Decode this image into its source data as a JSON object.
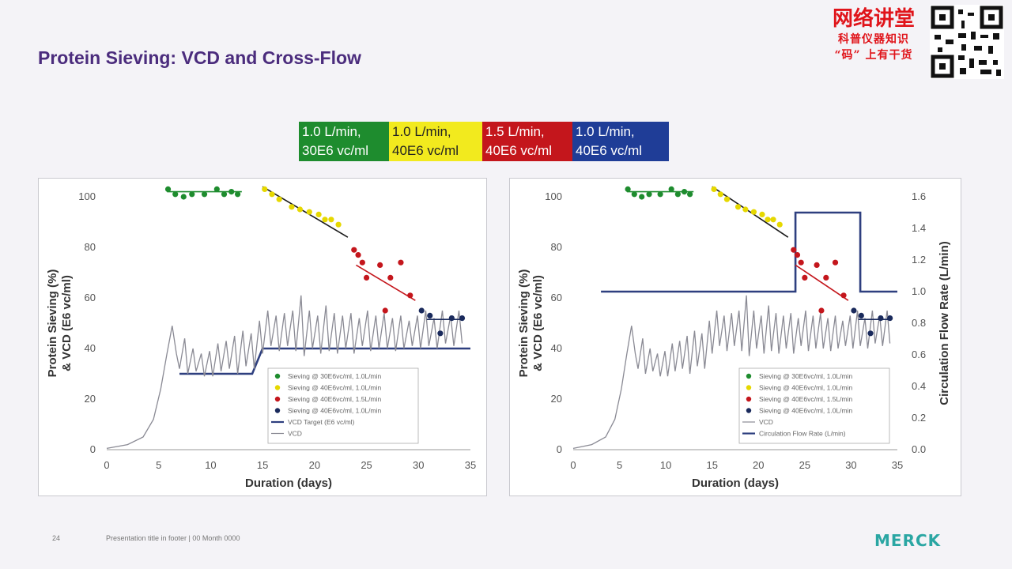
{
  "slide": {
    "title": "Protein Sieving: VCD and Cross-Flow",
    "footer_page": "24",
    "footer_text": "Presentation title in footer | 00 Month 0000",
    "logo_text": "MERCK"
  },
  "banner": {
    "title": "网络讲堂",
    "line1": "科普仪器知识",
    "line2": "“码” 上有干货"
  },
  "condition_boxes": [
    {
      "line1": "1.0 L/min,",
      "line2": "30E6 vc/ml",
      "color": "#1e8c2e"
    },
    {
      "line1": "1.0 L/min,",
      "line2": "40E6 vc/ml",
      "color": "#f2ea1e"
    },
    {
      "line1": "1.5 L/min,",
      "line2": "40E6 vc/ml",
      "color": "#c4161c"
    },
    {
      "line1": "1.0 L/min,",
      "line2": "40E6 vc/ml",
      "color": "#1f3d97"
    }
  ],
  "chart_data": [
    {
      "type": "scatter",
      "xlabel": "Duration (days)",
      "ylabel": "Protein Sieving (%) & VCD (E6 vc/ml)",
      "xlim": [
        0,
        35
      ],
      "ylim": [
        0,
        100
      ],
      "xticks": [
        0,
        5,
        10,
        15,
        20,
        25,
        30,
        35
      ],
      "yticks": [
        0,
        20,
        40,
        60,
        80,
        100
      ],
      "legend_position": "bottom-right",
      "series": [
        {
          "name": "Sieving @ 30E6vc/ml, 1.0L/min",
          "color": "#1e8c2e",
          "kind": "scatter",
          "x": [
            5.9,
            6.6,
            7.4,
            8.2,
            9.4,
            10.6,
            11.3,
            12.0,
            12.6
          ],
          "y": [
            103,
            101,
            100,
            101,
            101,
            103,
            101,
            102,
            101
          ],
          "trend": [
            [
              5.8,
              102
            ],
            [
              13.0,
              102
            ]
          ]
        },
        {
          "name": "Sieving @ 40E6vc/ml, 1.0L/min",
          "color": "#e6d800",
          "kind": "scatter",
          "x": [
            15.2,
            15.9,
            16.6,
            17.8,
            18.6,
            19.5,
            20.4,
            21.0,
            21.6,
            22.3
          ],
          "y": [
            103,
            101,
            99,
            96,
            95,
            94,
            93,
            91,
            91,
            89
          ],
          "trend": [
            [
              15.0,
              104
            ],
            [
              23.2,
              84
            ]
          ]
        },
        {
          "name": "Sieving @ 40E6vc/ml, 1.5L/min",
          "color": "#c4161c",
          "kind": "scatter",
          "x": [
            23.8,
            24.2,
            24.6,
            25.0,
            26.3,
            26.8,
            27.3,
            28.3,
            29.2
          ],
          "y": [
            79,
            77,
            74,
            68,
            73,
            55,
            68,
            74,
            61
          ],
          "trend": [
            [
              24.0,
              73
            ],
            [
              29.7,
              59
            ]
          ]
        },
        {
          "name": "Sieving @ 40E6vc/ml, 1.0L/min",
          "color": "#1a2a5c",
          "kind": "scatter",
          "x": [
            30.3,
            31.1,
            32.1,
            33.2,
            34.2
          ],
          "y": [
            55,
            53,
            46,
            52,
            52
          ],
          "trend": [
            [
              30.8,
              51.5
            ],
            [
              34.2,
              51.5
            ]
          ]
        },
        {
          "name": "VCD Target (E6 vc/ml)",
          "color": "#2e3f7f",
          "kind": "step",
          "x": [
            7,
            14,
            15,
            35
          ],
          "y": [
            30,
            30,
            40,
            40
          ]
        },
        {
          "name": "VCD",
          "color": "#8a8a94",
          "kind": "line",
          "x": [
            0,
            2,
            3.5,
            4.5,
            5.2,
            5.8,
            6.3,
            6.7,
            7.0,
            7.5,
            7.8,
            8.3,
            8.6,
            9.1,
            9.4,
            9.9,
            10.2,
            10.7,
            11.0,
            11.5,
            11.8,
            12.3,
            12.6,
            13.1,
            13.4,
            13.9,
            14.2,
            14.7,
            15.0,
            15.5,
            15.8,
            16.3,
            16.6,
            17.1,
            17.4,
            17.9,
            18.2,
            18.7,
            19.0,
            19.5,
            19.8,
            20.3,
            20.6,
            21.1,
            21.4,
            21.9,
            22.2,
            22.7,
            23.0,
            23.5,
            23.8,
            24.3,
            24.6,
            25.1,
            25.4,
            25.9,
            26.2,
            26.7,
            27.0,
            27.5,
            27.8,
            28.3,
            28.6,
            29.1,
            29.4,
            29.9,
            30.2,
            30.7,
            31.0,
            31.5,
            31.8,
            32.3,
            32.6,
            33.1,
            33.4,
            33.9,
            34.2
          ],
          "y": [
            0.5,
            2,
            5,
            12,
            24,
            38,
            49,
            38,
            32,
            44,
            30,
            40,
            31,
            38,
            29,
            39,
            29,
            42,
            31,
            43,
            32,
            45,
            30,
            47,
            33,
            46,
            32,
            51,
            38,
            55,
            41,
            53,
            39,
            54,
            41,
            55,
            39,
            61,
            37,
            55,
            40,
            53,
            38,
            57,
            39,
            54,
            38,
            53,
            40,
            54,
            38,
            52,
            41,
            55,
            39,
            53,
            40,
            54,
            40,
            52,
            39,
            53,
            40,
            51,
            41,
            53,
            40,
            55,
            41,
            52,
            40,
            55,
            42,
            53,
            41,
            55,
            42
          ]
        }
      ]
    },
    {
      "type": "scatter",
      "xlabel": "Duration (days)",
      "ylabel": "Protein Sieving (%) & VCD (E6 vc/ml)",
      "y2label": "Circulation Flow Rate (L/min)",
      "xlim": [
        0,
        35
      ],
      "ylim": [
        0,
        100
      ],
      "y2lim": [
        0,
        1.6
      ],
      "xticks": [
        0,
        5,
        10,
        15,
        20,
        25,
        30,
        35
      ],
      "yticks": [
        0,
        20,
        40,
        60,
        80,
        100
      ],
      "y2ticks": [
        "0.0",
        "0.2",
        "0.4",
        "0.6",
        "0.8",
        "1.0",
        "1.2",
        "1.4",
        "1.6"
      ],
      "legend_position": "bottom-right",
      "series": [
        {
          "name": "Sieving @ 30E6vc/ml, 1.0L/min",
          "color": "#1e8c2e",
          "kind": "scatter",
          "x": [
            5.9,
            6.6,
            7.4,
            8.2,
            9.4,
            10.6,
            11.3,
            12.0,
            12.6
          ],
          "y": [
            103,
            101,
            100,
            101,
            101,
            103,
            101,
            102,
            101
          ],
          "trend": [
            [
              5.8,
              102
            ],
            [
              13.0,
              102
            ]
          ]
        },
        {
          "name": "Sieving @ 40E6vc/ml, 1.0L/min",
          "color": "#e6d800",
          "kind": "scatter",
          "x": [
            15.2,
            15.9,
            16.6,
            17.8,
            18.6,
            19.5,
            20.4,
            21.0,
            21.6,
            22.3
          ],
          "y": [
            103,
            101,
            99,
            96,
            95,
            94,
            93,
            91,
            91,
            89
          ],
          "trend": [
            [
              15.0,
              104
            ],
            [
              23.2,
              84
            ]
          ]
        },
        {
          "name": "Sieving @ 40E6vc/ml, 1.5L/min",
          "color": "#c4161c",
          "kind": "scatter",
          "x": [
            23.8,
            24.2,
            24.6,
            25.0,
            26.3,
            26.8,
            27.3,
            28.3,
            29.2
          ],
          "y": [
            79,
            77,
            74,
            68,
            73,
            55,
            68,
            74,
            61
          ],
          "trend": [
            [
              24.0,
              73
            ],
            [
              29.7,
              59
            ]
          ]
        },
        {
          "name": "Sieving @ 40E6vc/ml, 1.0L/min",
          "color": "#1a2a5c",
          "kind": "scatter",
          "x": [
            30.3,
            31.1,
            32.1,
            33.2,
            34.2
          ],
          "y": [
            55,
            53,
            46,
            52,
            52
          ],
          "trend": [
            [
              30.8,
              51.5
            ],
            [
              34.2,
              51.5
            ]
          ]
        },
        {
          "name": "VCD",
          "color": "#8a8a94",
          "kind": "line",
          "x": [
            0,
            2,
            3.5,
            4.5,
            5.2,
            5.8,
            6.3,
            6.7,
            7.0,
            7.5,
            7.8,
            8.3,
            8.6,
            9.1,
            9.4,
            9.9,
            10.2,
            10.7,
            11.0,
            11.5,
            11.8,
            12.3,
            12.6,
            13.1,
            13.4,
            13.9,
            14.2,
            14.7,
            15.0,
            15.5,
            15.8,
            16.3,
            16.6,
            17.1,
            17.4,
            17.9,
            18.2,
            18.7,
            19.0,
            19.5,
            19.8,
            20.3,
            20.6,
            21.1,
            21.4,
            21.9,
            22.2,
            22.7,
            23.0,
            23.5,
            23.8,
            24.3,
            24.6,
            25.1,
            25.4,
            25.9,
            26.2,
            26.7,
            27.0,
            27.5,
            27.8,
            28.3,
            28.6,
            29.1,
            29.4,
            29.9,
            30.2,
            30.7,
            31.0,
            31.5,
            31.8,
            32.3,
            32.6,
            33.1,
            33.4,
            33.9,
            34.2
          ],
          "y": [
            0.5,
            2,
            5,
            12,
            24,
            38,
            49,
            38,
            32,
            44,
            30,
            40,
            31,
            38,
            29,
            39,
            29,
            42,
            31,
            43,
            32,
            45,
            30,
            47,
            33,
            46,
            32,
            51,
            38,
            55,
            41,
            53,
            39,
            54,
            41,
            55,
            39,
            61,
            37,
            55,
            40,
            53,
            38,
            57,
            39,
            54,
            38,
            53,
            40,
            54,
            38,
            52,
            41,
            55,
            39,
            53,
            40,
            54,
            40,
            52,
            39,
            53,
            40,
            51,
            41,
            53,
            40,
            55,
            41,
            52,
            40,
            55,
            42,
            53,
            41,
            55,
            42
          ]
        },
        {
          "name": "Circulation Flow Rate (L/min)",
          "color": "#2e3f7f",
          "kind": "step",
          "axis": "y2",
          "x": [
            3,
            24,
            24,
            31,
            31,
            35
          ],
          "y": [
            1.0,
            1.0,
            1.5,
            1.5,
            1.0,
            1.0
          ]
        }
      ]
    }
  ]
}
